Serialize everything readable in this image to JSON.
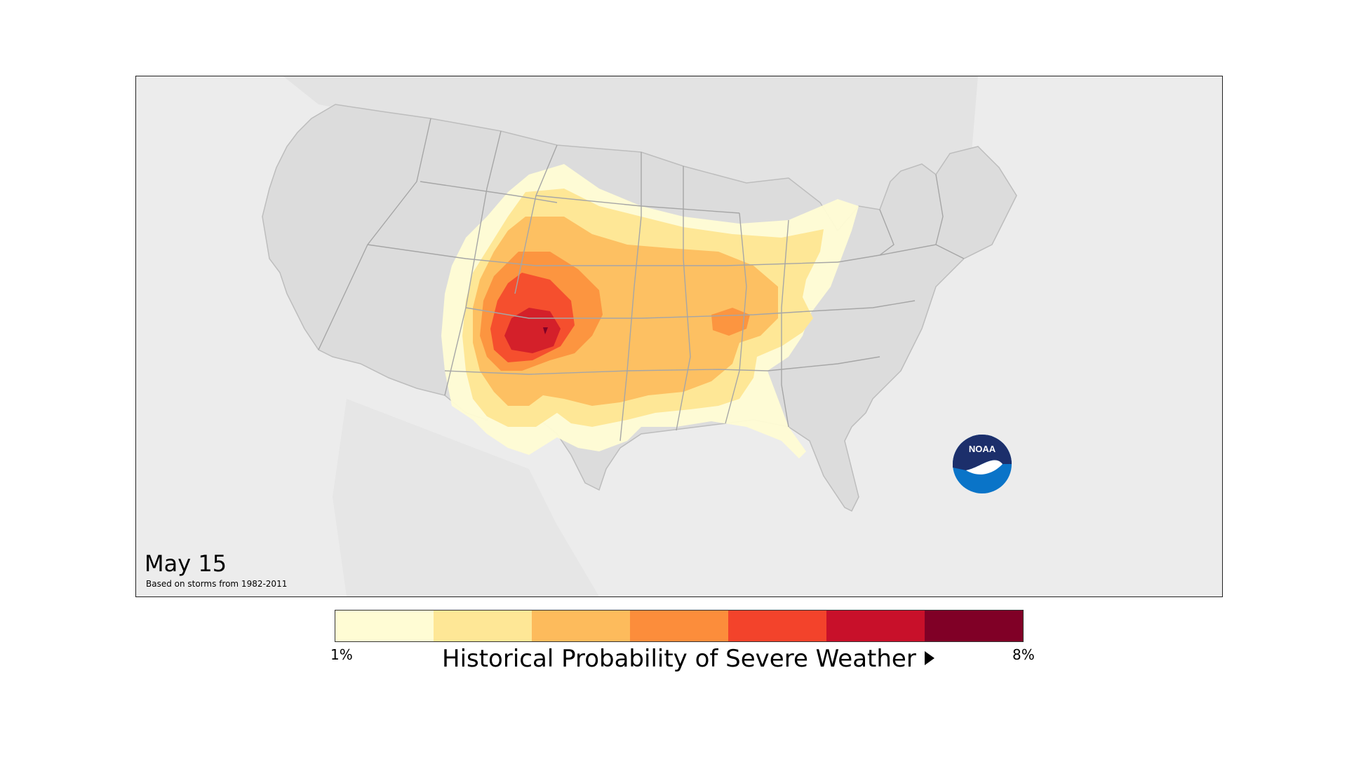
{
  "map": {
    "date_label": "May 15",
    "basis_label": "Based on storms from 1982-2011",
    "logo_text": "NOAA"
  },
  "legend": {
    "min_label": "1%",
    "max_label": "8%",
    "title": "Historical Probability of Severe Weather",
    "colors": [
      "#fffcd4",
      "#fee796",
      "#fdbb5c",
      "#fc8d3b",
      "#f3432b",
      "#c8102a",
      "#800026"
    ]
  },
  "colors": {
    "land": "#dcdcdc",
    "water": "#ececec",
    "border": "#a6a6a6",
    "noaa_blue": "#0a74c8",
    "noaa_navy": "#1c2f6b"
  }
}
